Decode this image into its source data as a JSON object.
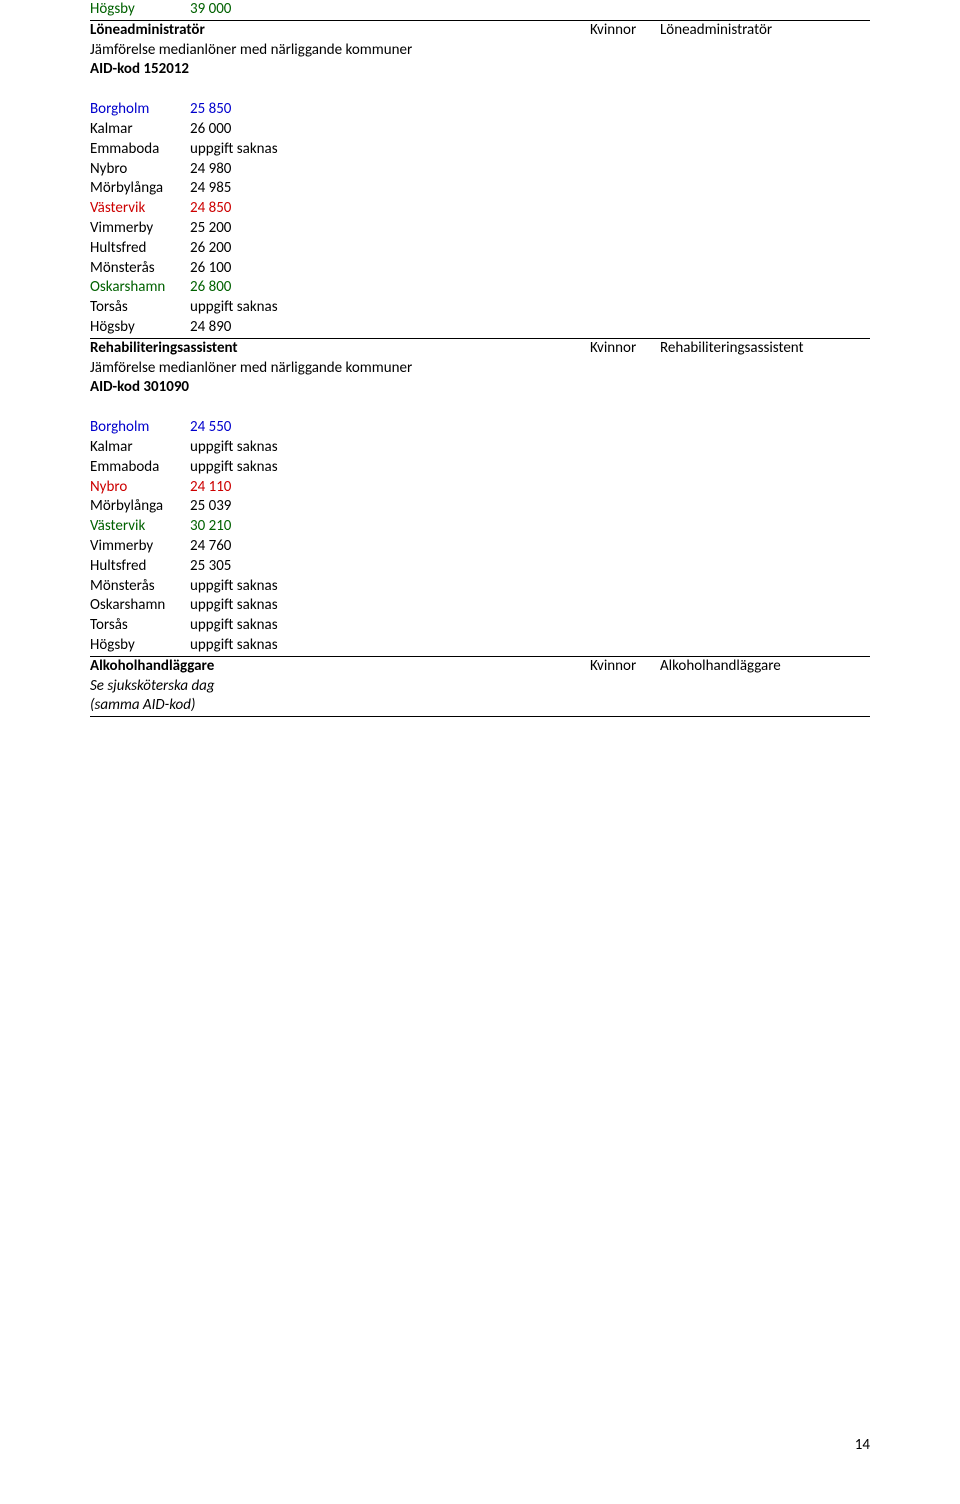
{
  "colors": {
    "green": "#006100",
    "blue": "#0000cc",
    "red": "#cc0000",
    "text": "#000000",
    "background": "#ffffff",
    "rule": "#000000"
  },
  "typography": {
    "font_family": "Calibri",
    "font_size_pt": 11
  },
  "page_number": "14",
  "top": {
    "hogsby_label": "Högsby",
    "hogsby_value": "39 000"
  },
  "section1": {
    "title": "Löneadministratör",
    "gender": "Kvinnor",
    "role": "Löneadministratör",
    "compare_line": "Jämförelse medianlöner med närliggande kommuner",
    "aid_line": "AID-kod 152012",
    "rows": [
      {
        "name": "Borgholm",
        "value": "25 850",
        "color": "blue"
      },
      {
        "name": "Kalmar",
        "value": "26 000",
        "color": "black"
      },
      {
        "name": "Emmaboda",
        "value": "uppgift saknas",
        "color": "black"
      },
      {
        "name": "Nybro",
        "value": "24 980",
        "color": "black"
      },
      {
        "name": "Mörbylånga",
        "value": "24 985",
        "color": "black"
      },
      {
        "name": "Västervik",
        "value": "24 850",
        "color": "red"
      },
      {
        "name": "Vimmerby",
        "value": "25 200",
        "color": "black"
      },
      {
        "name": "Hultsfred",
        "value": "26 200",
        "color": "black"
      },
      {
        "name": "Mönsterås",
        "value": "26 100",
        "color": "black"
      },
      {
        "name": "Oskarshamn",
        "value": "26 800",
        "color": "green"
      },
      {
        "name": "Torsås",
        "value": "uppgift saknas",
        "color": "black"
      },
      {
        "name": "Högsby",
        "value": "24 890",
        "color": "black"
      }
    ]
  },
  "section2": {
    "title": "Rehabiliteringsassistent",
    "gender": "Kvinnor",
    "role": "Rehabiliteringsassistent",
    "compare_line": "Jämförelse medianlöner med närliggande kommuner",
    "aid_line": "AID-kod 301090",
    "rows": [
      {
        "name": "Borgholm",
        "value": "24 550",
        "color": "blue"
      },
      {
        "name": "Kalmar",
        "value": "uppgift saknas",
        "color": "black"
      },
      {
        "name": "Emmaboda",
        "value": "uppgift saknas",
        "color": "black"
      },
      {
        "name": "Nybro",
        "value": "24 110",
        "color": "red"
      },
      {
        "name": "Mörbylånga",
        "value": "25 039",
        "color": "black"
      },
      {
        "name": "Västervik",
        "value": "30 210",
        "color": "green"
      },
      {
        "name": "Vimmerby",
        "value": "24 760",
        "color": "black"
      },
      {
        "name": "Hultsfred",
        "value": "25 305",
        "color": "black"
      },
      {
        "name": "Mönsterås",
        "value": "uppgift saknas",
        "color": "black"
      },
      {
        "name": "Oskarshamn",
        "value": "uppgift saknas",
        "color": "black"
      },
      {
        "name": "Torsås",
        "value": "uppgift saknas",
        "color": "black"
      },
      {
        "name": "Högsby",
        "value": "uppgift saknas",
        "color": "black"
      }
    ]
  },
  "section3": {
    "title": "Alkoholhandläggare",
    "gender": "Kvinnor",
    "role": "Alkoholhandläggare",
    "note1": "Se sjuksköterska dag",
    "note2": "(samma AID-kod)"
  }
}
